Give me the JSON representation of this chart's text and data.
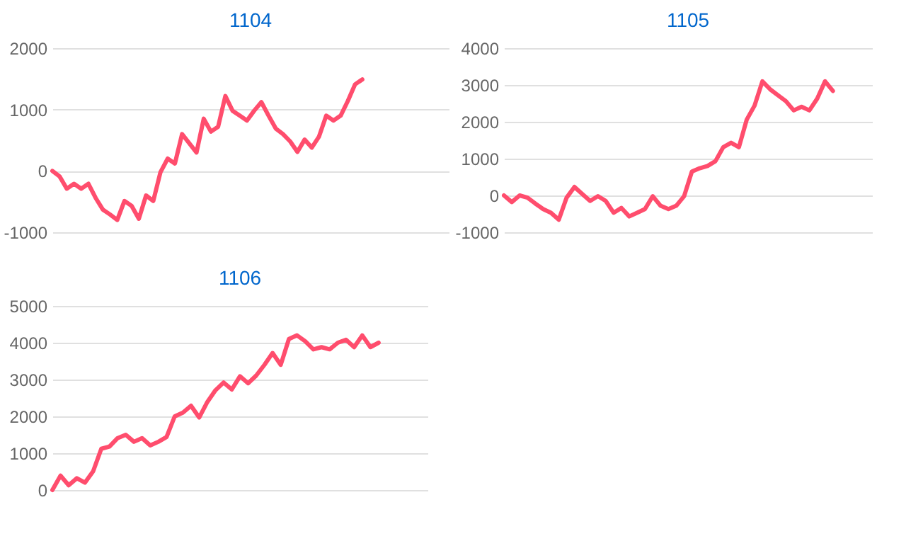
{
  "chart_data": [
    {
      "type": "line",
      "title": "1104",
      "categories": [
        null,
        null,
        null,
        null,
        null,
        null,
        null,
        null,
        null,
        null,
        null,
        null,
        null,
        null,
        null,
        null,
        null,
        null,
        null,
        null,
        null,
        null,
        null,
        null,
        null,
        null,
        null,
        null,
        null,
        null,
        null,
        null,
        null,
        null,
        null,
        null,
        null,
        null,
        null,
        null,
        null,
        null,
        null,
        null,
        null,
        null,
        null,
        null,
        null,
        null,
        null,
        null,
        null,
        null,
        null,
        null
      ],
      "series": [
        {
          "color": "#ff4d6d",
          "values": [
            0,
            -90,
            -290,
            -210,
            -290,
            -210,
            -440,
            -630,
            -710,
            -800,
            -490,
            -570,
            -780,
            -400,
            -490,
            -20,
            200,
            120,
            600,
            450,
            300,
            850,
            640,
            720,
            1220,
            980,
            900,
            820,
            980,
            1120,
            900,
            690,
            600,
            480,
            310,
            510,
            380,
            560,
            900,
            820,
            900,
            1140,
            1410,
            1490,
            null,
            null,
            null,
            null,
            null,
            null,
            null,
            null,
            null,
            null,
            null,
            null
          ]
        }
      ],
      "ylim": [
        -1000,
        2000
      ],
      "yticks": [
        -1000,
        0,
        1000,
        2000
      ],
      "grid": "y",
      "tick_labels": "y",
      "marker": "none",
      "line_style": "solid"
    },
    {
      "type": "line",
      "title": "1105",
      "categories": [
        null,
        null,
        null,
        null,
        null,
        null,
        null,
        null,
        null,
        null,
        null,
        null,
        null,
        null,
        null,
        null,
        null,
        null,
        null,
        null,
        null,
        null,
        null,
        null,
        null,
        null,
        null,
        null,
        null,
        null,
        null,
        null,
        null,
        null,
        null,
        null,
        null,
        null,
        null,
        null,
        null,
        null,
        null,
        null,
        null,
        null,
        null,
        null
      ],
      "series": [
        {
          "color": "#ff4d6d",
          "values": [
            0,
            -180,
            0,
            -60,
            -220,
            -370,
            -470,
            -660,
            -60,
            230,
            40,
            -150,
            -20,
            -150,
            -470,
            -340,
            -570,
            -470,
            -370,
            -20,
            -280,
            -370,
            -280,
            -20,
            650,
            740,
            800,
            930,
            1310,
            1430,
            1310,
            2060,
            2440,
            3100,
            2880,
            2720,
            2560,
            2310,
            2410,
            2310,
            2630,
            3100,
            2840,
            null,
            null,
            null,
            null,
            null
          ]
        }
      ],
      "ylim": [
        -1000,
        4000
      ],
      "yticks": [
        -1000,
        0,
        1000,
        2000,
        3000,
        4000
      ],
      "grid": "y",
      "tick_labels": "y",
      "marker": "none",
      "line_style": "solid"
    },
    {
      "type": "line",
      "title": "1106",
      "categories": [
        null,
        null,
        null,
        null,
        null,
        null,
        null,
        null,
        null,
        null,
        null,
        null,
        null,
        null,
        null,
        null,
        null,
        null,
        null,
        null,
        null,
        null,
        null,
        null,
        null,
        null,
        null,
        null,
        null,
        null,
        null,
        null,
        null,
        null,
        null,
        null,
        null,
        null,
        null,
        null,
        null,
        null,
        null,
        null,
        null,
        null,
        null
      ],
      "series": [
        {
          "color": "#ff4d6d",
          "values": [
            0,
            390,
            130,
            320,
            200,
            510,
            1120,
            1180,
            1410,
            1500,
            1310,
            1410,
            1210,
            1310,
            1440,
            2000,
            2100,
            2290,
            1970,
            2390,
            2710,
            2920,
            2730,
            3090,
            2900,
            3110,
            3400,
            3720,
            3400,
            4100,
            4200,
            4040,
            3820,
            3880,
            3820,
            4000,
            4080,
            3880,
            4200,
            3880,
            4000,
            null,
            null,
            null,
            null,
            null,
            null
          ]
        }
      ],
      "ylim": [
        0,
        5000
      ],
      "yticks": [
        0,
        1000,
        2000,
        3000,
        4000,
        5000
      ],
      "grid": "y",
      "tick_labels": "y",
      "marker": "none",
      "line_style": "solid"
    }
  ]
}
